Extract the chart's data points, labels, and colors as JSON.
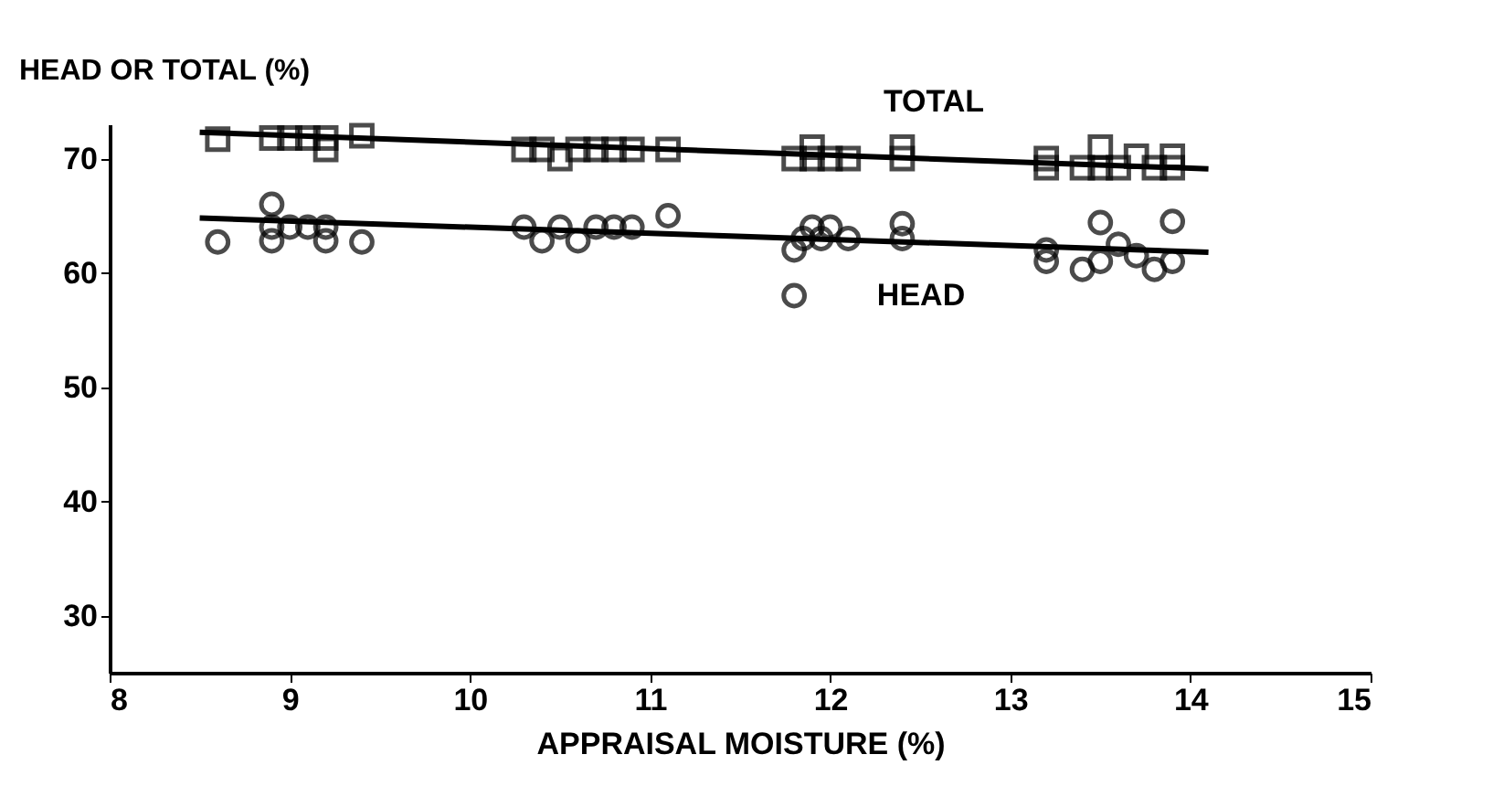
{
  "chart_data": {
    "type": "scatter",
    "xlabel": "APPRAISAL  MOISTURE  (%)",
    "ylabel": "HEAD OR TOTAL (%)",
    "xlim": [
      8,
      15
    ],
    "ylim": [
      25,
      73
    ],
    "xticks": [
      8,
      9,
      10,
      11,
      12,
      13,
      14,
      15
    ],
    "yticks": [
      30,
      40,
      50,
      60,
      70
    ],
    "grid": false,
    "series": [
      {
        "marker": "square",
        "color": "#000000",
        "x": [
          8.6,
          8.9,
          9.0,
          9.1,
          9.2,
          9.2,
          9.4,
          10.3,
          10.4,
          10.5,
          10.6,
          10.7,
          10.8,
          10.9,
          11.1,
          11.8,
          11.9,
          11.9,
          12.0,
          12.1,
          12.4,
          12.4,
          13.2,
          13.2,
          13.4,
          13.5,
          13.5,
          13.6,
          13.7,
          13.8,
          13.9,
          13.9
        ],
        "values": [
          71.7,
          71.8,
          71.8,
          71.8,
          71.8,
          70.8,
          72,
          70.8,
          70.8,
          70,
          70.8,
          70.8,
          70.8,
          70.8,
          70.8,
          70,
          71,
          70,
          70,
          70,
          71,
          70,
          70,
          69.2,
          69.2,
          71,
          69.2,
          69.2,
          70.2,
          69.2,
          70.2,
          69.2
        ]
      },
      {
        "marker": "circle",
        "color": "#000000",
        "x": [
          8.6,
          8.9,
          8.9,
          8.9,
          9.0,
          9.1,
          9.2,
          9.2,
          9.4,
          10.3,
          10.4,
          10.5,
          10.6,
          10.7,
          10.8,
          10.9,
          11.1,
          11.8,
          11.8,
          11.85,
          11.9,
          12.0,
          11.95,
          12.1,
          12.4,
          12.4,
          13.2,
          13.2,
          13.4,
          13.5,
          13.5,
          13.6,
          13.7,
          13.8,
          13.9,
          13.9
        ],
        "values": [
          62.7,
          66,
          62.8,
          64,
          64,
          64,
          64,
          62.8,
          62.7,
          64,
          62.8,
          64,
          62.8,
          64,
          64,
          64,
          65,
          58,
          62,
          63,
          64,
          64,
          63,
          63,
          64.3,
          63,
          62,
          61,
          60.3,
          64.4,
          61,
          62.5,
          61.5,
          60.3,
          64.5,
          61
        ]
      },
      {
        "type": "line",
        "line_style": "solid",
        "color": "#000000",
        "x": [
          8.5,
          14.1
        ],
        "values": [
          72.3,
          69.1
        ]
      },
      {
        "type": "line",
        "line_style": "solid",
        "color": "#000000",
        "x": [
          8.5,
          14.1
        ],
        "values": [
          64.8,
          61.8
        ]
      }
    ],
    "annotations": [
      "TOTAL",
      "HEAD"
    ]
  }
}
